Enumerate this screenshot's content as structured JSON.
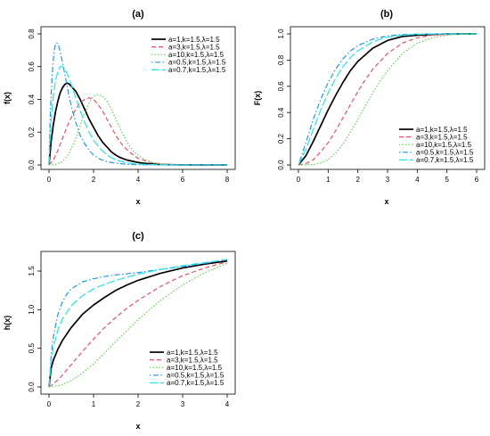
{
  "chart_data": [
    {
      "type": "line",
      "panel": "(a)",
      "title": "(a)",
      "xlabel": "x",
      "ylabel": "f(x)",
      "xlim": [
        0,
        8
      ],
      "ylim": [
        0,
        0.8
      ],
      "xticks": [
        0,
        2,
        4,
        6,
        8
      ],
      "yticks": [
        0.0,
        0.2,
        0.4,
        0.6,
        0.8
      ],
      "ytick_labels": [
        "0.0",
        "0.2",
        "0.4",
        "0.6",
        "0.8"
      ],
      "legend_position": "top-right",
      "grid": false,
      "series": [
        {
          "name": "a=1,k=1.5,λ=1.5",
          "color": "#000000",
          "dash": "solid",
          "x": [
            0,
            0.1,
            0.2,
            0.3,
            0.4,
            0.5,
            0.6,
            0.7,
            0.8,
            0.9,
            1.0,
            1.2,
            1.4,
            1.6,
            1.8,
            2.0,
            2.2,
            2.4,
            2.6,
            2.8,
            3.0,
            3.2,
            3.5,
            4.0,
            4.5,
            5.0,
            5.5,
            6.0,
            7.0,
            8.0
          ],
          "y": [
            0,
            0.15,
            0.25,
            0.33,
            0.39,
            0.44,
            0.47,
            0.49,
            0.5,
            0.495,
            0.48,
            0.45,
            0.4,
            0.34,
            0.28,
            0.23,
            0.18,
            0.14,
            0.11,
            0.08,
            0.06,
            0.045,
            0.03,
            0.015,
            0.007,
            0.003,
            0.0015,
            0.0007,
            0.0001,
            0
          ]
        },
        {
          "name": "a=3,k=1.5,λ=1.5",
          "color": "#df536b",
          "dash": "dashed",
          "x": [
            0,
            0.2,
            0.4,
            0.6,
            0.8,
            1.0,
            1.2,
            1.4,
            1.6,
            1.8,
            2.0,
            2.2,
            2.4,
            2.6,
            2.8,
            3.0,
            3.3,
            3.6,
            4.0,
            4.5,
            5.0,
            5.5,
            6.0,
            7.0,
            8.0
          ],
          "y": [
            0,
            0.03,
            0.09,
            0.16,
            0.23,
            0.29,
            0.34,
            0.38,
            0.4,
            0.41,
            0.4,
            0.37,
            0.33,
            0.28,
            0.23,
            0.18,
            0.12,
            0.08,
            0.04,
            0.017,
            0.007,
            0.003,
            0.001,
            0.0002,
            0
          ]
        },
        {
          "name": "a=10,k=1.5,λ=1.5",
          "color": "#61d04f",
          "dash": "dotted",
          "x": [
            0,
            0.3,
            0.6,
            0.9,
            1.2,
            1.4,
            1.6,
            1.8,
            2.0,
            2.2,
            2.4,
            2.6,
            2.8,
            3.0,
            3.2,
            3.5,
            3.8,
            4.2,
            4.6,
            5.0,
            5.5,
            6.0,
            7.0,
            8.0
          ],
          "y": [
            0,
            0.003,
            0.02,
            0.07,
            0.16,
            0.24,
            0.32,
            0.38,
            0.42,
            0.43,
            0.42,
            0.39,
            0.34,
            0.28,
            0.22,
            0.14,
            0.08,
            0.04,
            0.015,
            0.006,
            0.002,
            0.0007,
            0.0001,
            0
          ]
        },
        {
          "name": "a=0.5,k=1.5,λ=1.5",
          "color": "#2297e6",
          "dash": "dotdash",
          "x": [
            0,
            0.05,
            0.1,
            0.15,
            0.2,
            0.25,
            0.3,
            0.35,
            0.4,
            0.45,
            0.5,
            0.6,
            0.7,
            0.8,
            0.9,
            1.0,
            1.2,
            1.4,
            1.6,
            1.8,
            2.0,
            2.3,
            2.6,
            3.0,
            3.5,
            4.0,
            5.0,
            6.0,
            8.0
          ],
          "y": [
            0,
            0.28,
            0.44,
            0.56,
            0.65,
            0.71,
            0.74,
            0.745,
            0.74,
            0.72,
            0.69,
            0.63,
            0.56,
            0.49,
            0.42,
            0.36,
            0.26,
            0.18,
            0.13,
            0.09,
            0.06,
            0.035,
            0.02,
            0.01,
            0.004,
            0.0015,
            0.0002,
            0,
            0
          ]
        },
        {
          "name": "a=0.7,k=1.5,λ=1.5",
          "color": "#28e2e5",
          "dash": "longdash",
          "x": [
            0,
            0.05,
            0.1,
            0.2,
            0.3,
            0.4,
            0.5,
            0.6,
            0.7,
            0.8,
            0.9,
            1.0,
            1.2,
            1.4,
            1.6,
            1.8,
            2.0,
            2.3,
            2.6,
            3.0,
            3.5,
            4.0,
            5.0,
            6.0,
            8.0
          ],
          "y": [
            0,
            0.17,
            0.28,
            0.43,
            0.52,
            0.57,
            0.6,
            0.6,
            0.59,
            0.56,
            0.53,
            0.49,
            0.41,
            0.33,
            0.26,
            0.2,
            0.15,
            0.1,
            0.06,
            0.03,
            0.012,
            0.005,
            0.0008,
            0,
            0
          ]
        }
      ]
    },
    {
      "type": "line",
      "panel": "(b)",
      "title": "(b)",
      "xlabel": "x",
      "ylabel": "F(x)",
      "xlim": [
        0,
        6
      ],
      "ylim": [
        0,
        1.0
      ],
      "xticks": [
        0,
        1,
        2,
        3,
        4,
        5,
        6
      ],
      "yticks": [
        0.0,
        0.2,
        0.4,
        0.6,
        0.8,
        1.0
      ],
      "ytick_labels": [
        "0.0",
        "0.2",
        "0.4",
        "0.6",
        "0.8",
        "1.0"
      ],
      "legend_position": "bottom-right",
      "grid": false,
      "series": [
        {
          "name": "a=1,k=1.5,λ=1.5",
          "color": "#000000",
          "dash": "solid",
          "x": [
            0,
            0.25,
            0.5,
            0.75,
            1.0,
            1.25,
            1.5,
            1.75,
            2.0,
            2.5,
            3.0,
            3.5,
            4.0,
            4.5,
            5.0,
            5.5,
            6.0
          ],
          "y": [
            0,
            0.07,
            0.18,
            0.3,
            0.42,
            0.53,
            0.63,
            0.72,
            0.79,
            0.89,
            0.95,
            0.98,
            0.99,
            0.996,
            0.999,
            1.0,
            1.0
          ]
        },
        {
          "name": "a=3,k=1.5,λ=1.5",
          "color": "#df536b",
          "dash": "dashed",
          "x": [
            0,
            0.25,
            0.5,
            0.75,
            1.0,
            1.25,
            1.5,
            1.75,
            2.0,
            2.25,
            2.5,
            3.0,
            3.5,
            4.0,
            4.5,
            5.0,
            5.5,
            6.0
          ],
          "y": [
            0,
            0.01,
            0.04,
            0.1,
            0.17,
            0.26,
            0.36,
            0.46,
            0.56,
            0.65,
            0.73,
            0.85,
            0.93,
            0.97,
            0.99,
            0.996,
            0.999,
            1.0
          ]
        },
        {
          "name": "a=10,k=1.5,λ=1.5",
          "color": "#61d04f",
          "dash": "dotted",
          "x": [
            0,
            0.5,
            0.75,
            1.0,
            1.25,
            1.5,
            1.75,
            2.0,
            2.25,
            2.5,
            2.75,
            3.0,
            3.5,
            4.0,
            4.5,
            5.0,
            5.5,
            6.0
          ],
          "y": [
            0,
            0.003,
            0.015,
            0.04,
            0.09,
            0.16,
            0.25,
            0.35,
            0.45,
            0.55,
            0.64,
            0.72,
            0.85,
            0.93,
            0.97,
            0.99,
            0.997,
            1.0
          ]
        },
        {
          "name": "a=0.5,k=1.5,λ=1.5",
          "color": "#2297e6",
          "dash": "dotdash",
          "x": [
            0,
            0.25,
            0.5,
            0.75,
            1.0,
            1.25,
            1.5,
            1.75,
            2.0,
            2.5,
            3.0,
            3.5,
            4.0,
            4.5,
            5.0,
            6.0
          ],
          "y": [
            0,
            0.17,
            0.35,
            0.5,
            0.63,
            0.73,
            0.81,
            0.87,
            0.91,
            0.96,
            0.985,
            0.995,
            0.998,
            1.0,
            1.0,
            1.0
          ]
        },
        {
          "name": "a=0.7,k=1.5,λ=1.5",
          "color": "#28e2e5",
          "dash": "longdash",
          "x": [
            0,
            0.25,
            0.5,
            0.75,
            1.0,
            1.25,
            1.5,
            1.75,
            2.0,
            2.5,
            3.0,
            3.5,
            4.0,
            4.5,
            5.0,
            6.0
          ],
          "y": [
            0,
            0.12,
            0.27,
            0.42,
            0.55,
            0.66,
            0.75,
            0.82,
            0.87,
            0.94,
            0.975,
            0.99,
            0.996,
            0.999,
            1.0,
            1.0
          ]
        }
      ]
    },
    {
      "type": "line",
      "panel": "(c)",
      "title": "(c)",
      "xlabel": "x",
      "ylabel": "h(x)",
      "xlim": [
        0,
        4
      ],
      "ylim": [
        0,
        1.65
      ],
      "xticks": [
        0,
        1,
        2,
        3,
        4
      ],
      "yticks": [
        0.0,
        0.5,
        1.0,
        1.5
      ],
      "ytick_labels": [
        "0.0",
        "0.5",
        "1.0",
        "1.5"
      ],
      "legend_position": "bottom-right",
      "grid": false,
      "series": [
        {
          "name": "a=1,k=1.5,λ=1.5",
          "color": "#000000",
          "dash": "solid",
          "x": [
            0,
            0.05,
            0.1,
            0.2,
            0.3,
            0.5,
            0.75,
            1.0,
            1.25,
            1.5,
            1.75,
            2.0,
            2.5,
            3.0,
            3.5,
            4.0
          ],
          "y": [
            0,
            0.25,
            0.35,
            0.49,
            0.6,
            0.77,
            0.94,
            1.06,
            1.16,
            1.25,
            1.32,
            1.38,
            1.47,
            1.54,
            1.59,
            1.63
          ]
        },
        {
          "name": "a=3,k=1.5,λ=1.5",
          "color": "#df536b",
          "dash": "dashed",
          "x": [
            0,
            0.1,
            0.25,
            0.5,
            0.75,
            1.0,
            1.25,
            1.5,
            1.75,
            2.0,
            2.5,
            3.0,
            3.5,
            4.0
          ],
          "y": [
            0,
            0.04,
            0.12,
            0.29,
            0.46,
            0.62,
            0.77,
            0.9,
            1.02,
            1.12,
            1.3,
            1.44,
            1.54,
            1.62
          ]
        },
        {
          "name": "a=10,k=1.5,λ=1.5",
          "color": "#61d04f",
          "dash": "dotted",
          "x": [
            0,
            0.25,
            0.5,
            0.75,
            1.0,
            1.25,
            1.5,
            1.75,
            2.0,
            2.5,
            3.0,
            3.5,
            4.0
          ],
          "y": [
            0,
            0.02,
            0.08,
            0.18,
            0.3,
            0.44,
            0.59,
            0.73,
            0.87,
            1.12,
            1.32,
            1.48,
            1.6
          ]
        },
        {
          "name": "a=0.5,k=1.5,λ=1.5",
          "color": "#2297e6",
          "dash": "dotdash",
          "x": [
            0,
            0.05,
            0.1,
            0.2,
            0.3,
            0.4,
            0.5,
            0.75,
            1.0,
            1.25,
            1.5,
            2.0,
            2.5,
            3.0,
            3.5,
            4.0
          ],
          "y": [
            0,
            0.42,
            0.66,
            0.94,
            1.1,
            1.2,
            1.27,
            1.36,
            1.4,
            1.43,
            1.45,
            1.48,
            1.52,
            1.56,
            1.6,
            1.65
          ]
        },
        {
          "name": "a=0.7,k=1.5,λ=1.5",
          "color": "#28e2e5",
          "dash": "longdash",
          "x": [
            0,
            0.05,
            0.1,
            0.2,
            0.3,
            0.5,
            0.75,
            1.0,
            1.25,
            1.5,
            2.0,
            2.5,
            3.0,
            3.5,
            4.0
          ],
          "y": [
            0,
            0.34,
            0.52,
            0.74,
            0.88,
            1.05,
            1.18,
            1.27,
            1.33,
            1.38,
            1.46,
            1.52,
            1.57,
            1.61,
            1.65
          ]
        }
      ]
    }
  ]
}
